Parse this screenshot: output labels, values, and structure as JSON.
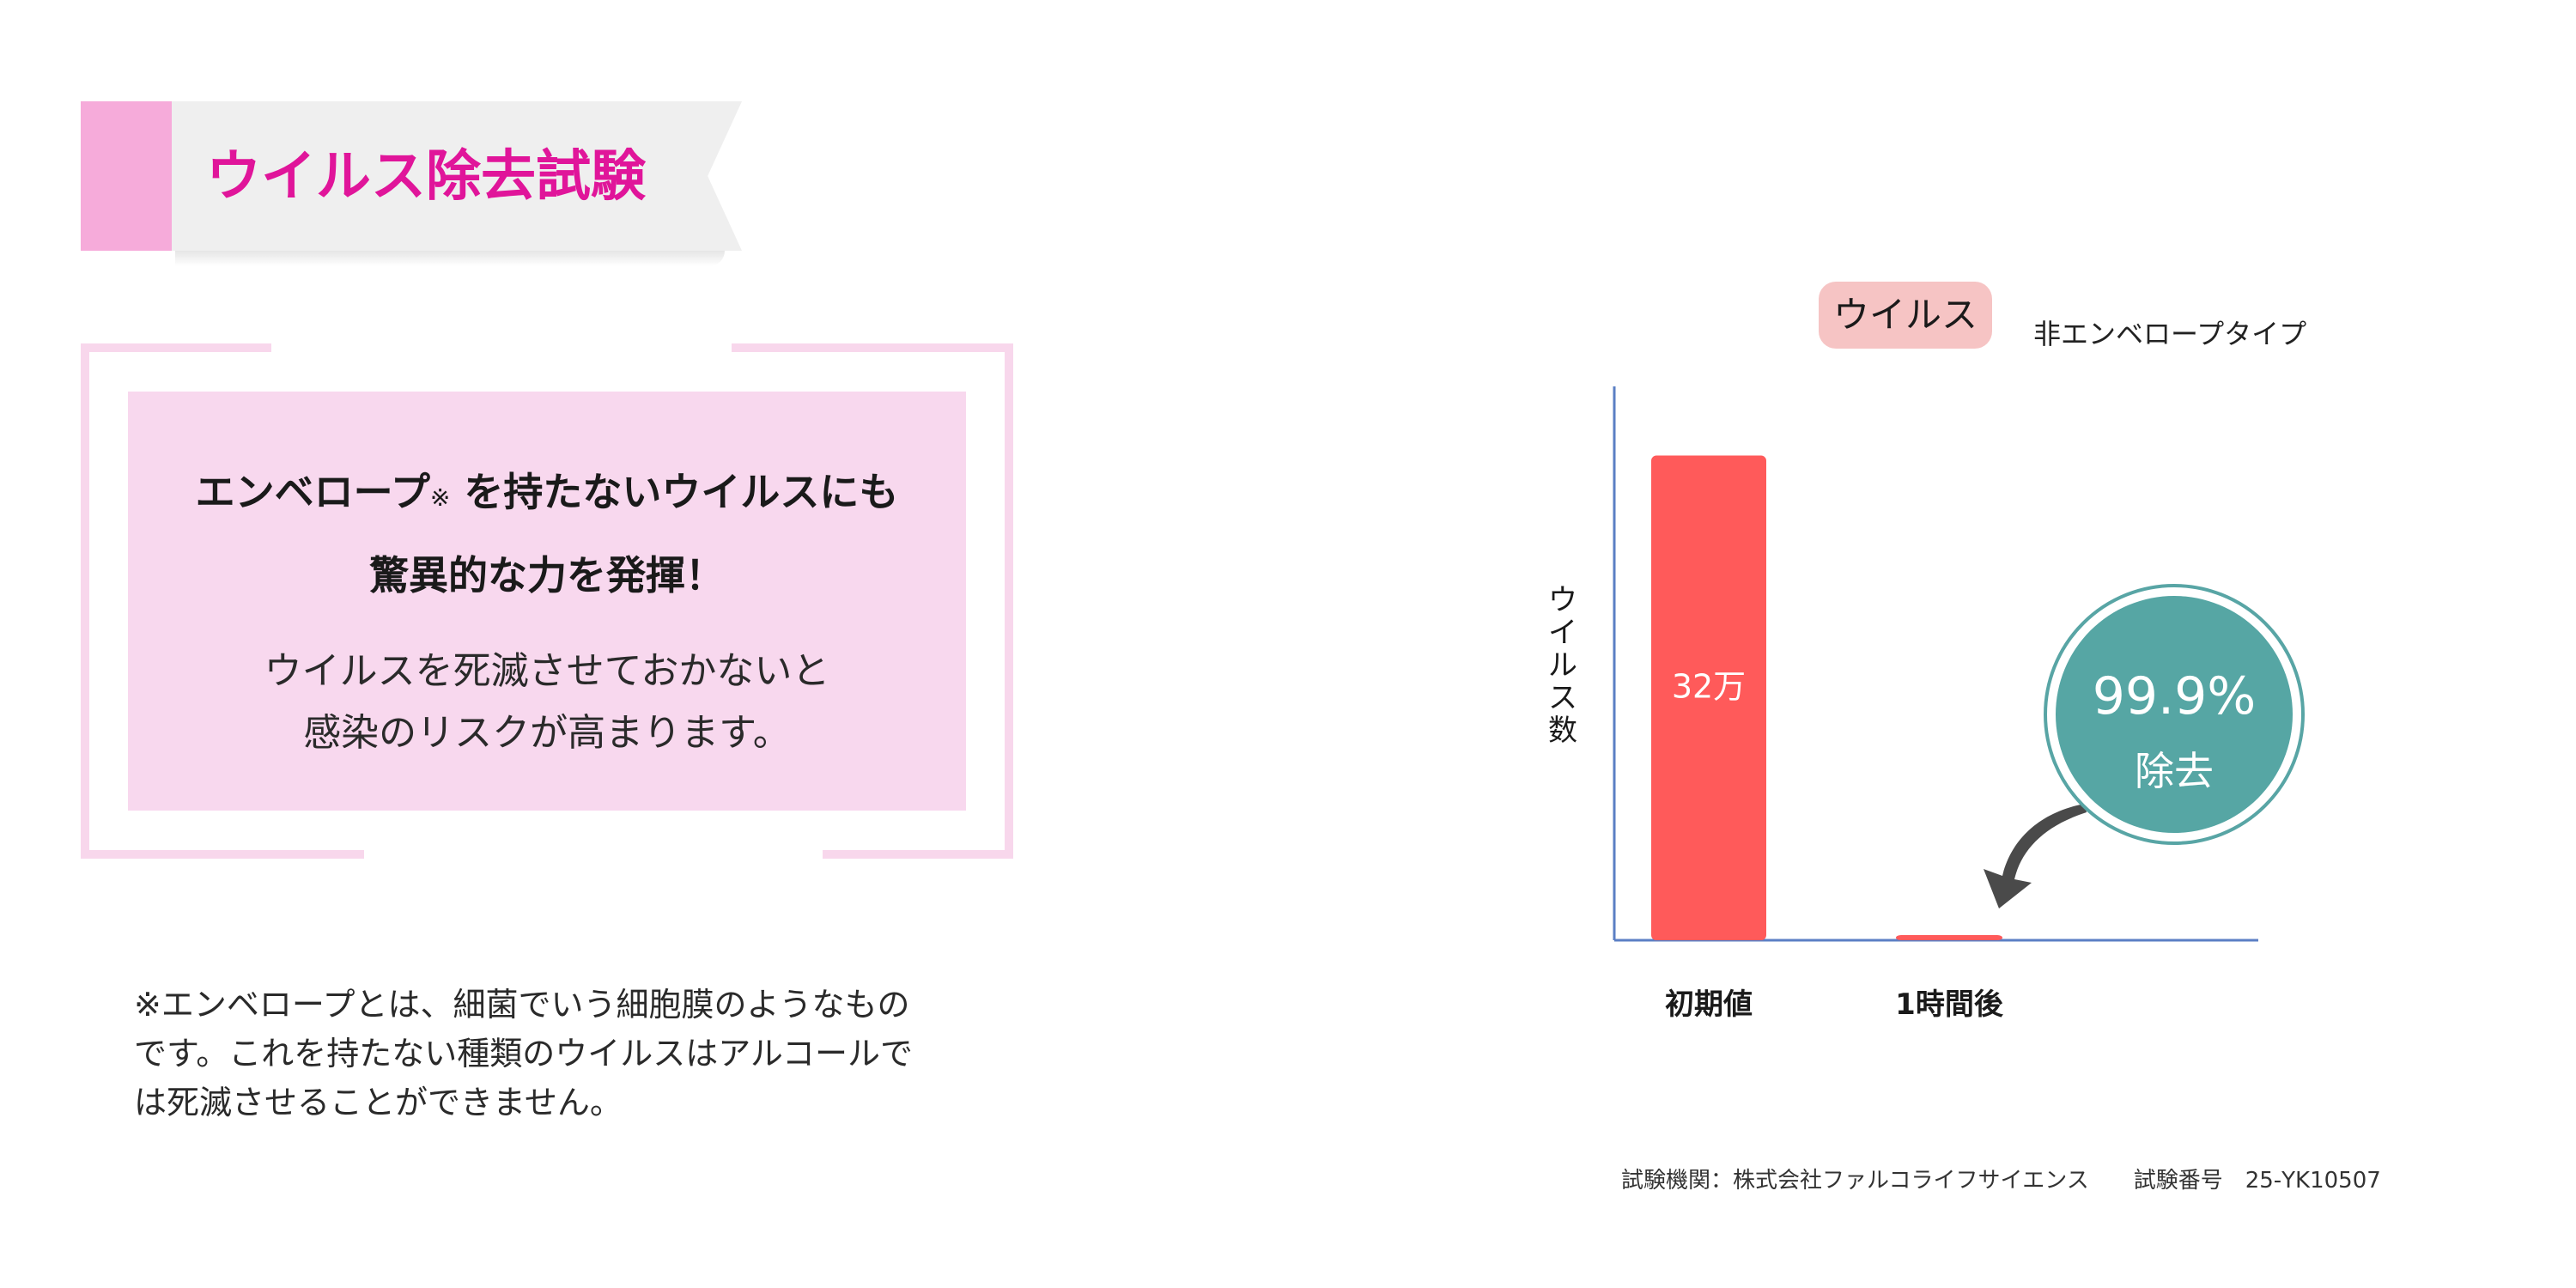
{
  "title": "ウイルス除去試験",
  "info": {
    "headline_line1_pre": "エンベロープ",
    "headline_mark": "※",
    "headline_line1_post": " を持たないウイルスにも",
    "headline_line2": "驚異的な力を発揮！",
    "body_line1": "ウイルスを死滅させておかないと",
    "body_line2": "感染のリスクが高まります。"
  },
  "footnote": {
    "line1": "※エンベロープとは、細菌でいう細胞膜のようなもの",
    "line2": "です。これを持たない種類のウイルスはアルコールで",
    "line3": "は死滅させることができません。"
  },
  "chart_header": {
    "tag": "ウイルス",
    "subtitle": "非エンベロープタイプ"
  },
  "badge": {
    "value": "99.9%",
    "label": "除去"
  },
  "source": {
    "text": "試験機関：株式会社ファルコライフサイエンス　　試験番号　25-YK10507"
  },
  "colors": {
    "accent_pink": "#e0159a",
    "bar_red": "#ff5a5a",
    "axis_blue": "#5b7fc4",
    "teal": "#56a6a4",
    "arrow_gray": "#4a4a4a"
  },
  "chart_data": {
    "type": "bar",
    "categories": [
      "初期値",
      "1時間後"
    ],
    "values": [
      320000,
      320
    ],
    "value_labels": [
      "32万",
      ""
    ],
    "ylabel": "ウイルス数",
    "xlabel": "",
    "ylim": [
      0,
      360000
    ],
    "grid": false
  }
}
